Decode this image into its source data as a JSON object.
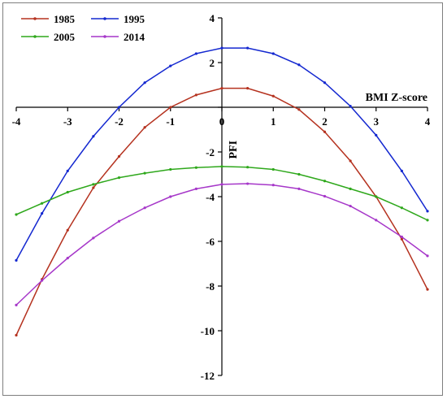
{
  "chart_data": {
    "type": "line",
    "title": "",
    "xlabel": "BMI Z-score",
    "ylabel": "PFI",
    "xlim": [
      -4,
      4
    ],
    "ylim": [
      -12,
      4
    ],
    "x_ticks": [
      -4,
      -3,
      -2,
      -1,
      0,
      1,
      2,
      3,
      4
    ],
    "x_tick_labels": [
      "-4",
      "-3",
      "-2",
      "-1",
      "0",
      "1",
      "2",
      "3",
      "4"
    ],
    "y_ticks": [
      -12,
      -10,
      -8,
      -6,
      -4,
      -2,
      0,
      2,
      4
    ],
    "y_tick_labels": [
      "-12",
      "-10",
      "-8",
      "-6",
      "-4",
      "-2",
      "",
      "2",
      "4"
    ],
    "grid": false,
    "legend_position": "top-left",
    "x": [
      -4,
      -3.5,
      -3,
      -2.5,
      -2,
      -1.5,
      -1,
      -0.5,
      0,
      0.5,
      1,
      1.5,
      2,
      2.5,
      3,
      3.5,
      4
    ],
    "series": [
      {
        "name": "1985",
        "color": "#b5321f",
        "values": [
          -10.2,
          -7.7,
          -5.5,
          -3.6,
          -2.2,
          -0.9,
          0.0,
          0.55,
          0.85,
          0.85,
          0.5,
          -0.1,
          -1.1,
          -2.4,
          -4.0,
          -5.9,
          -8.15
        ]
      },
      {
        "name": "1995",
        "color": "#1428d0",
        "values": [
          -6.85,
          -4.75,
          -2.85,
          -1.3,
          0.0,
          1.1,
          1.85,
          2.4,
          2.65,
          2.65,
          2.4,
          1.9,
          1.1,
          0.05,
          -1.25,
          -2.85,
          -4.65
        ]
      },
      {
        "name": "2005",
        "color": "#2fa81c",
        "values": [
          -4.8,
          -4.3,
          -3.8,
          -3.45,
          -3.15,
          -2.95,
          -2.78,
          -2.7,
          -2.65,
          -2.68,
          -2.78,
          -3.0,
          -3.3,
          -3.65,
          -4.0,
          -4.5,
          -5.05
        ]
      },
      {
        "name": "2014",
        "color": "#a637c9",
        "values": [
          -8.85,
          -7.75,
          -6.75,
          -5.85,
          -5.1,
          -4.5,
          -4.0,
          -3.65,
          -3.45,
          -3.42,
          -3.48,
          -3.65,
          -3.98,
          -4.42,
          -5.05,
          -5.8,
          -6.65
        ]
      }
    ]
  }
}
